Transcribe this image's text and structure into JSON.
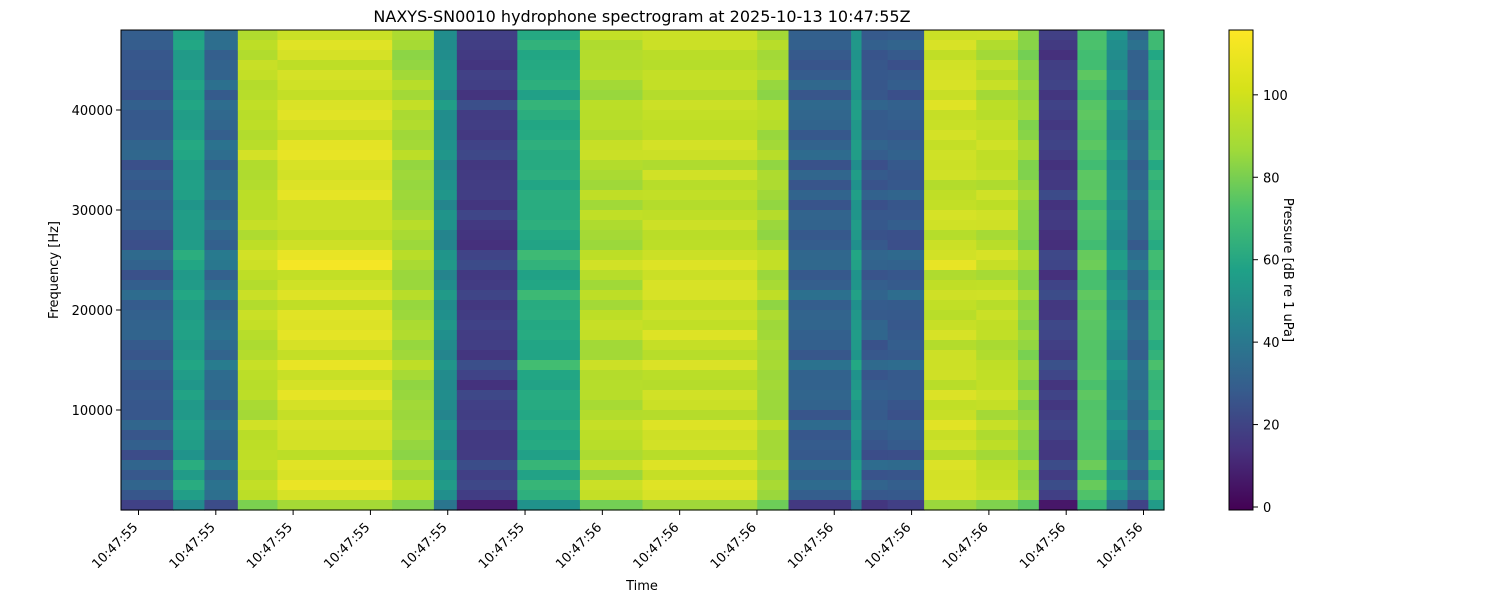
{
  "chart_data": {
    "type": "heatmap",
    "title": "NAXYS-SN0010 hydrophone spectrogram at 2025-10-13 10:47:55Z",
    "xlabel": "Time",
    "ylabel": "Frequency [Hz]",
    "x_ticks": [
      "10:47:55",
      "10:47:55",
      "10:47:55",
      "10:47:55",
      "10:47:55",
      "10:47:55",
      "10:47:56",
      "10:47:56",
      "10:47:56",
      "10:47:56",
      "10:47:56",
      "10:47:56",
      "10:47:56",
      "10:47:56"
    ],
    "y_ticks": [
      10000,
      20000,
      30000,
      40000
    ],
    "ylim": [
      0,
      48000
    ],
    "colorbar": {
      "label": "Pressure [dB re 1 uPa]",
      "ticks": [
        0,
        20,
        40,
        60,
        80,
        100
      ],
      "range": [
        0,
        115
      ],
      "colormap": "viridis"
    },
    "time_segments": [
      {
        "start": 0.0,
        "end": 0.05,
        "level": 34
      },
      {
        "start": 0.05,
        "end": 0.08,
        "level": 66
      },
      {
        "start": 0.08,
        "end": 0.112,
        "level": 40
      },
      {
        "start": 0.112,
        "end": 0.15,
        "level": 104
      },
      {
        "start": 0.15,
        "end": 0.26,
        "level": 108
      },
      {
        "start": 0.26,
        "end": 0.3,
        "level": 100
      },
      {
        "start": 0.3,
        "end": 0.322,
        "level": 58
      },
      {
        "start": 0.322,
        "end": 0.38,
        "level": 22
      },
      {
        "start": 0.38,
        "end": 0.44,
        "level": 72
      },
      {
        "start": 0.44,
        "end": 0.5,
        "level": 102
      },
      {
        "start": 0.5,
        "end": 0.61,
        "level": 106
      },
      {
        "start": 0.61,
        "end": 0.64,
        "level": 100
      },
      {
        "start": 0.64,
        "end": 0.7,
        "level": 36
      },
      {
        "start": 0.7,
        "end": 0.71,
        "level": 62
      },
      {
        "start": 0.71,
        "end": 0.735,
        "level": 34
      },
      {
        "start": 0.735,
        "end": 0.77,
        "level": 34
      },
      {
        "start": 0.77,
        "end": 0.82,
        "level": 106
      },
      {
        "start": 0.82,
        "end": 0.86,
        "level": 104
      },
      {
        "start": 0.86,
        "end": 0.88,
        "level": 96
      },
      {
        "start": 0.88,
        "end": 0.917,
        "level": 22
      },
      {
        "start": 0.917,
        "end": 0.945,
        "level": 84
      },
      {
        "start": 0.945,
        "end": 0.965,
        "level": 58
      },
      {
        "start": 0.965,
        "end": 0.985,
        "level": 40
      },
      {
        "start": 0.985,
        "end": 1.0,
        "level": 76
      }
    ]
  }
}
